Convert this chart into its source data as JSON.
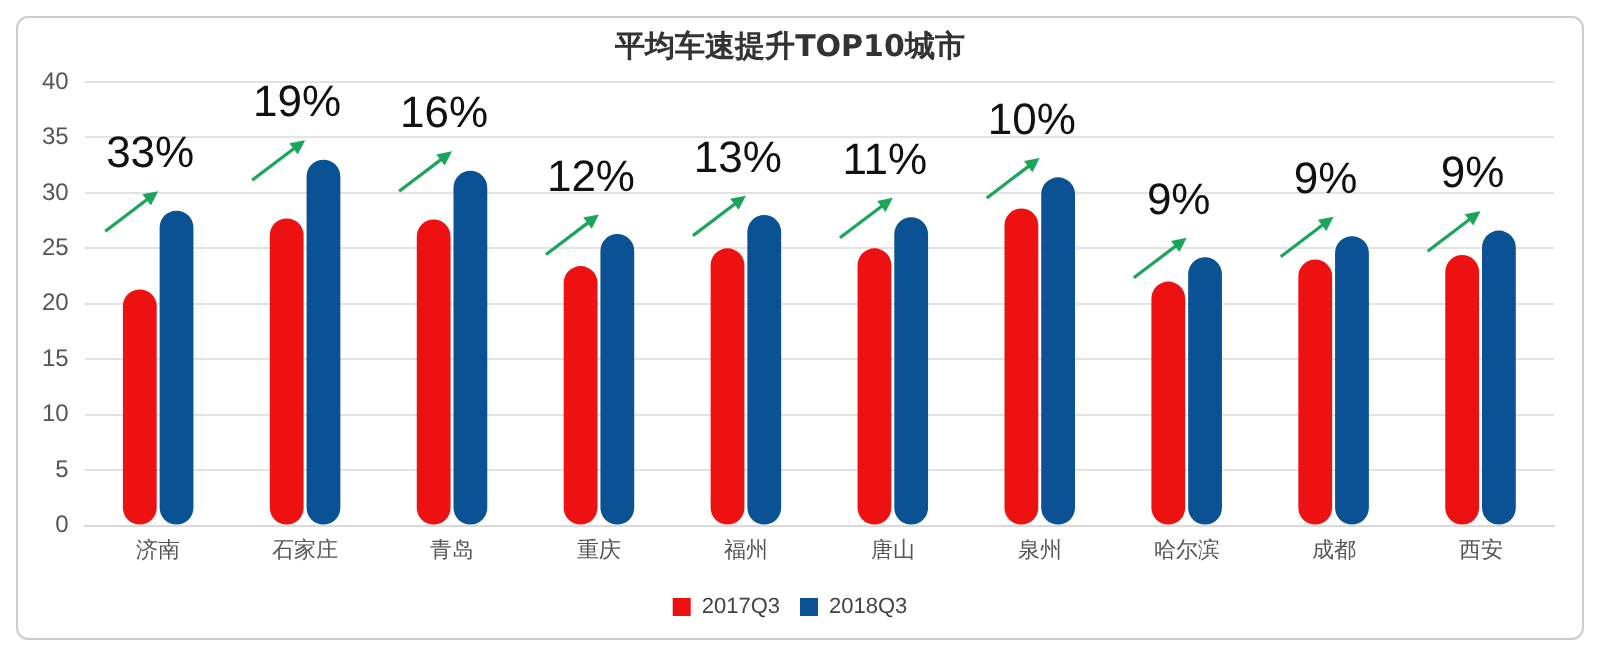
{
  "chart_data": {
    "type": "bar",
    "title": "平均车速提升TOP10城市",
    "categories": [
      "济南",
      "石家庄",
      "青岛",
      "重庆",
      "福州",
      "唐山",
      "泉州",
      "哈尔滨",
      "成都",
      "西安"
    ],
    "series": [
      {
        "name": "2017Q3",
        "color": "#ee1111",
        "values": [
          21.3,
          27.7,
          27.6,
          23.4,
          25.0,
          25.0,
          28.6,
          22.0,
          24.0,
          24.4
        ]
      },
      {
        "name": "2018Q3",
        "color": "#0b5294",
        "values": [
          28.4,
          33.0,
          32.0,
          26.3,
          28.0,
          27.8,
          31.4,
          24.2,
          26.1,
          26.6
        ]
      }
    ],
    "ylim": [
      0,
      40
    ],
    "yticks": [
      0,
      5,
      10,
      15,
      20,
      25,
      30,
      35,
      40
    ],
    "grid": "y",
    "legend": "bottom",
    "annotations": [
      "33%",
      "19%",
      "16%",
      "12%",
      "13%",
      "11%",
      "10%",
      "9%",
      "9%",
      "9%"
    ]
  }
}
